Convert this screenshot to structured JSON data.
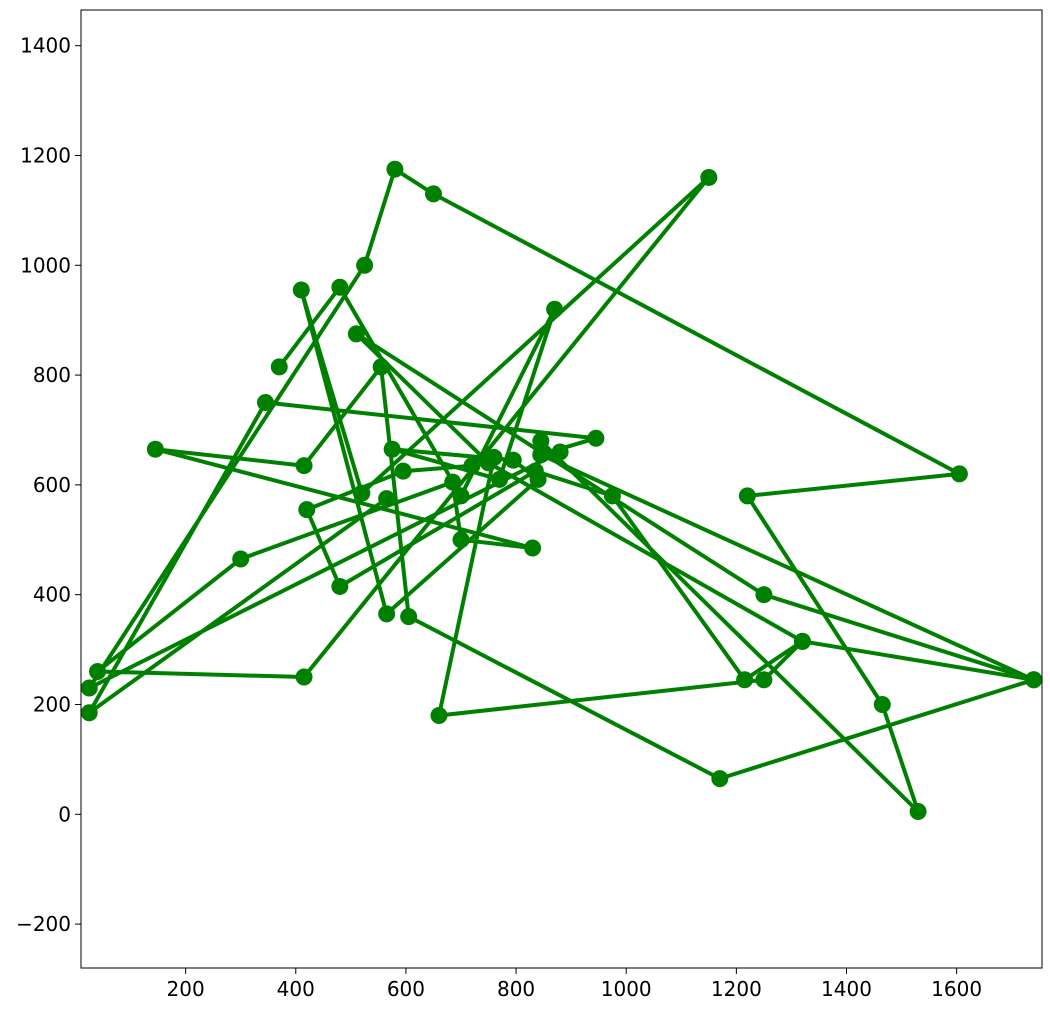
{
  "chart_data": {
    "type": "line",
    "title": "",
    "xlabel": "",
    "ylabel": "",
    "xlim": [
      10,
      1755
    ],
    "ylim": [
      -280,
      1465
    ],
    "xticks": [
      200,
      400,
      600,
      800,
      1000,
      1200,
      1400,
      1600
    ],
    "yticks": [
      -200,
      0,
      200,
      400,
      600,
      800,
      1000,
      1200,
      1400
    ],
    "grid": false,
    "legend": "none",
    "color": "#008000",
    "marker": "circle",
    "series": [
      {
        "x": [
          565,
          25,
          345,
          945,
          845,
          880,
          25,
          525,
          580,
          650,
          1605,
          1220,
          1465,
          1530,
          845,
          845,
          1740,
          1250,
          510,
          750,
          1320,
          1250,
          660,
          760,
          720,
          595,
          420,
          480,
          835,
          975,
          1215,
          1320,
          1740,
          1170,
          605,
          555,
          415,
          145,
          830,
          700,
          685,
          300,
          40,
          415,
          1150,
          520,
          410,
          565,
          840,
          795,
          575,
          770,
          870,
          700,
          480,
          370
        ],
        "y": [
          575,
          185,
          750,
          685,
          655,
          660,
          230,
          1000,
          1175,
          1130,
          620,
          580,
          200,
          5,
          680,
          655,
          245,
          400,
          875,
          640,
          315,
          245,
          180,
          650,
          635,
          625,
          555,
          415,
          625,
          580,
          245,
          315,
          245,
          65,
          360,
          815,
          635,
          665,
          485,
          500,
          605,
          465,
          260,
          250,
          1160,
          585,
          955,
          365,
          610,
          645,
          665,
          610,
          920,
          580,
          960,
          815
        ]
      }
    ]
  }
}
